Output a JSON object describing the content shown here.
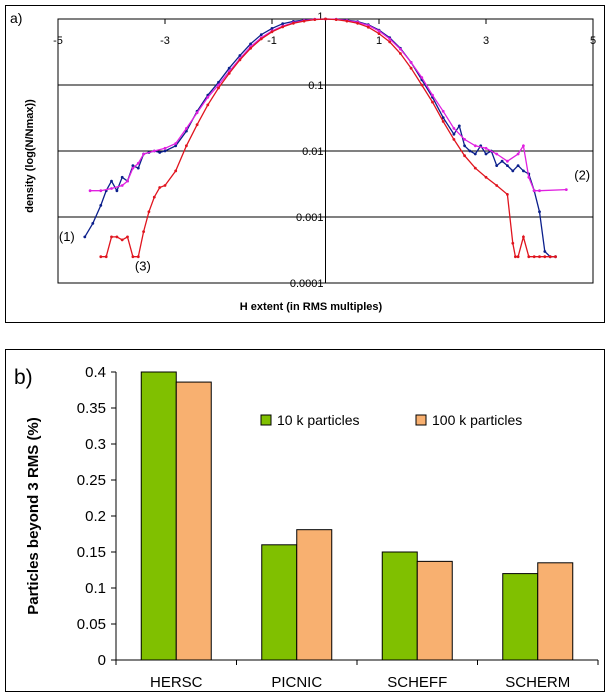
{
  "chart_data": [
    {
      "type": "line",
      "panel_label": "a)",
      "xlabel": "H extent (in RMS multiples)",
      "ylabel": "density (log(N/Nmax))",
      "xlim": [
        -5,
        5
      ],
      "x_ticks": [
        "-5",
        "-3",
        "-1",
        "1",
        "3",
        "5"
      ],
      "y_scale": "log",
      "ylim": [
        0.0001,
        1
      ],
      "y_ticks": [
        "1",
        "0.1",
        "0.01",
        "0.001",
        "0.0001"
      ],
      "grid": "horizontal",
      "series": [
        {
          "id": "s1",
          "color": "#0b1f8c",
          "annotation": "(1)",
          "x": [
            -4.5,
            -4.35,
            -4.2,
            -4.1,
            -4.0,
            -3.9,
            -3.8,
            -3.7,
            -3.6,
            -3.5,
            -3.4,
            -3.3,
            -3.2,
            -3.1,
            -3.0,
            -2.8,
            -2.6,
            -2.4,
            -2.2,
            -2.0,
            -1.8,
            -1.6,
            -1.4,
            -1.2,
            -1.0,
            -0.8,
            -0.6,
            -0.4,
            -0.2,
            0,
            0.2,
            0.4,
            0.6,
            0.8,
            1.0,
            1.2,
            1.4,
            1.6,
            1.8,
            2.0,
            2.2,
            2.4,
            2.5,
            2.6,
            2.7,
            2.8,
            2.9,
            3.0,
            3.1,
            3.2,
            3.3,
            3.4,
            3.5,
            3.6,
            3.7,
            3.8,
            3.9,
            4.0,
            4.1,
            4.2,
            4.3
          ],
          "y": [
            0.0005,
            0.0008,
            0.0015,
            0.0025,
            0.0035,
            0.0025,
            0.004,
            0.0035,
            0.006,
            0.0055,
            0.009,
            0.0095,
            0.01,
            0.0095,
            0.01,
            0.012,
            0.02,
            0.04,
            0.07,
            0.11,
            0.18,
            0.28,
            0.42,
            0.58,
            0.72,
            0.85,
            0.92,
            0.96,
            0.99,
            1.0,
            0.99,
            0.96,
            0.91,
            0.82,
            0.68,
            0.52,
            0.36,
            0.22,
            0.12,
            0.065,
            0.032,
            0.018,
            0.024,
            0.012,
            0.01,
            0.009,
            0.012,
            0.009,
            0.01,
            0.006,
            0.007,
            0.006,
            0.005,
            0.006,
            0.005,
            0.0045,
            0.0025,
            0.0012,
            0.0003,
            0.00025,
            0.00025
          ]
        },
        {
          "id": "s2",
          "color": "#e020e0",
          "annotation": "(2)",
          "x": [
            -4.4,
            -4.2,
            -4.0,
            -3.8,
            -3.7,
            -3.6,
            -3.5,
            -3.4,
            -3.2,
            -3.0,
            -2.8,
            -2.6,
            -2.4,
            -2.2,
            -2.0,
            -1.8,
            -1.6,
            -1.4,
            -1.2,
            -1.0,
            -0.8,
            -0.6,
            -0.4,
            -0.2,
            0,
            0.2,
            0.4,
            0.6,
            0.8,
            1.0,
            1.2,
            1.4,
            1.6,
            1.8,
            2.0,
            2.2,
            2.4,
            2.6,
            2.8,
            3.0,
            3.2,
            3.4,
            3.6,
            3.7,
            3.8,
            3.9,
            4.0,
            4.5
          ],
          "y": [
            0.0025,
            0.0025,
            0.0027,
            0.003,
            0.0035,
            0.0055,
            0.0065,
            0.009,
            0.01,
            0.011,
            0.013,
            0.022,
            0.038,
            0.065,
            0.1,
            0.16,
            0.25,
            0.38,
            0.52,
            0.66,
            0.78,
            0.88,
            0.95,
            0.99,
            1.0,
            0.99,
            0.95,
            0.89,
            0.8,
            0.66,
            0.5,
            0.35,
            0.22,
            0.13,
            0.07,
            0.04,
            0.022,
            0.015,
            0.012,
            0.011,
            0.009,
            0.007,
            0.009,
            0.012,
            0.004,
            0.0025,
            0.0025,
            0.0026
          ]
        },
        {
          "id": "s3",
          "color": "#e0141e",
          "annotation": "(3)",
          "x": [
            -4.2,
            -4.1,
            -4.0,
            -3.9,
            -3.8,
            -3.7,
            -3.6,
            -3.5,
            -3.4,
            -3.3,
            -3.2,
            -3.1,
            -3.0,
            -2.8,
            -2.6,
            -2.4,
            -2.2,
            -2.0,
            -1.8,
            -1.6,
            -1.4,
            -1.2,
            -1.0,
            -0.8,
            -0.6,
            -0.4,
            -0.2,
            0,
            0.2,
            0.4,
            0.6,
            0.8,
            1.0,
            1.2,
            1.4,
            1.6,
            1.8,
            2.0,
            2.2,
            2.4,
            2.6,
            2.8,
            3.0,
            3.2,
            3.4,
            3.5,
            3.55,
            3.6,
            3.7,
            3.8,
            3.9,
            4.0,
            4.1,
            4.2,
            4.3
          ],
          "y": [
            0.00025,
            0.00025,
            0.0005,
            0.0005,
            0.00045,
            0.0005,
            0.00025,
            0.00025,
            0.0006,
            0.0012,
            0.002,
            0.0028,
            0.003,
            0.005,
            0.012,
            0.025,
            0.05,
            0.09,
            0.15,
            0.24,
            0.36,
            0.5,
            0.64,
            0.76,
            0.86,
            0.93,
            0.98,
            1.0,
            0.98,
            0.93,
            0.86,
            0.75,
            0.6,
            0.45,
            0.3,
            0.18,
            0.1,
            0.055,
            0.028,
            0.015,
            0.0085,
            0.0055,
            0.004,
            0.003,
            0.0022,
            0.0004,
            0.00025,
            0.00025,
            0.0005,
            0.00025,
            0.00025,
            0.00025,
            0.00025,
            0.00025,
            0.00025
          ]
        }
      ]
    },
    {
      "type": "bar",
      "panel_label": "b)",
      "ylabel": "Particles beyond 3 RMS (%)",
      "ylim": [
        0,
        0.4
      ],
      "y_ticks": [
        "0",
        "0.05",
        "0.1",
        "0.15",
        "0.2",
        "0.25",
        "0.3",
        "0.35",
        "0.4"
      ],
      "categories": [
        "HERSC",
        "PICNIC",
        "SCHEFF",
        "SCHERM"
      ],
      "legend_position": "top-right",
      "series": [
        {
          "name": "10 k particles",
          "color": "#80c000",
          "values": [
            0.4,
            0.16,
            0.15,
            0.12
          ]
        },
        {
          "name": "100 k particles",
          "color": "#f8b070",
          "values": [
            0.386,
            0.181,
            0.137,
            0.135
          ]
        }
      ]
    }
  ]
}
